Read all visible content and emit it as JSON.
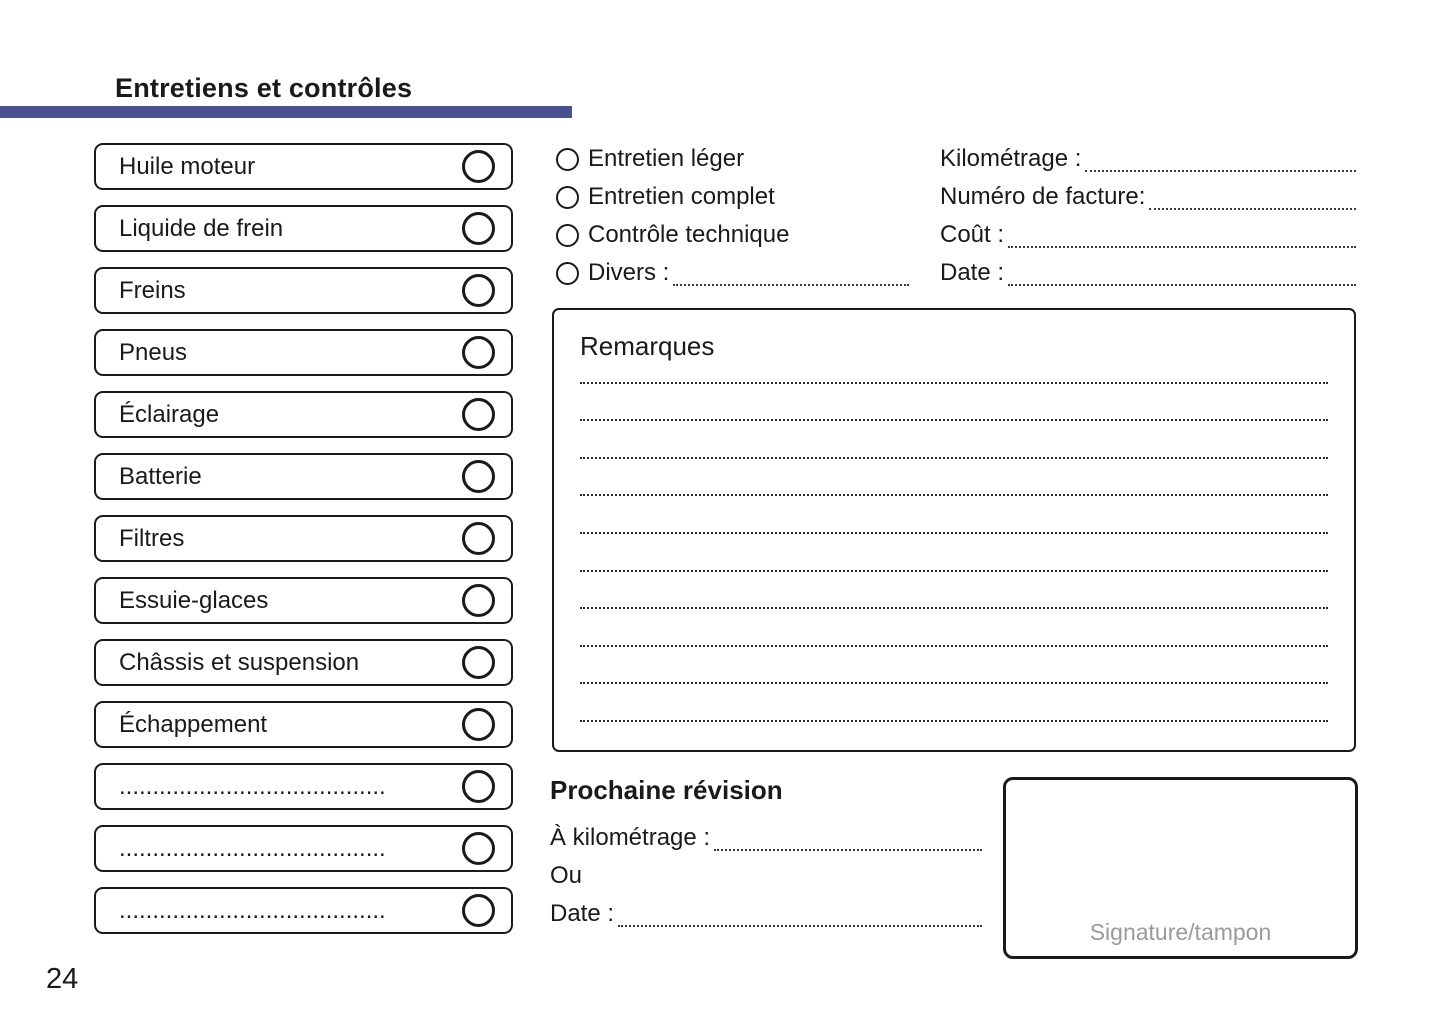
{
  "page": {
    "title": "Entretiens et contrôles",
    "page_number": "24"
  },
  "colors": {
    "accent": "#49508f",
    "ink": "#1a1a1a",
    "signature_muted": "#9a9a9a"
  },
  "checklist": {
    "items": [
      {
        "label": "Huile moteur"
      },
      {
        "label": "Liquide de frein"
      },
      {
        "label": "Freins"
      },
      {
        "label": "Pneus"
      },
      {
        "label": "Éclairage"
      },
      {
        "label": "Batterie"
      },
      {
        "label": "Filtres"
      },
      {
        "label": "Essuie-glaces"
      },
      {
        "label": "Châssis et suspension"
      },
      {
        "label": "Échappement"
      },
      {
        "label": "........................................"
      },
      {
        "label": "........................................"
      },
      {
        "label": "........................................"
      }
    ]
  },
  "service_type": {
    "options": [
      {
        "label": "Entretien léger",
        "leader": false
      },
      {
        "label": "Entretien complet",
        "leader": false
      },
      {
        "label": "Contrôle technique",
        "leader": false
      },
      {
        "label": "Divers :",
        "leader": true
      }
    ]
  },
  "invoice_fields": {
    "fields": [
      {
        "label": "Kilométrage :"
      },
      {
        "label": "Numéro de facture:"
      },
      {
        "label": "Coût :"
      },
      {
        "label": "Date :"
      }
    ]
  },
  "remarks": {
    "title": "Remarques",
    "lines": [
      "",
      "",
      "",
      "",
      "",
      "",
      "",
      "",
      "",
      ""
    ]
  },
  "next_service": {
    "title": "Prochaine révision",
    "rows": [
      {
        "label": "À kilométrage :",
        "leader": true
      },
      {
        "label": "Ou",
        "leader": false
      },
      {
        "label": "Date :",
        "leader": true
      }
    ]
  },
  "signature": {
    "label": "Signature/tampon"
  }
}
